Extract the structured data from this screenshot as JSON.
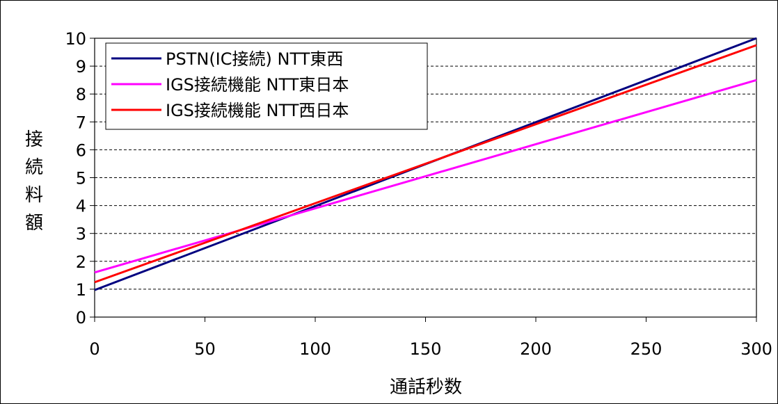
{
  "chart_data": {
    "type": "line",
    "xlabel": "通話秒数",
    "ylabel": "接続料額",
    "xlim": [
      0,
      300
    ],
    "ylim": [
      0,
      10
    ],
    "xticks": [
      0,
      50,
      100,
      150,
      200,
      250,
      300
    ],
    "yticks": [
      0,
      1,
      2,
      3,
      4,
      5,
      6,
      7,
      8,
      9,
      10
    ],
    "grid": "horizontal dashed",
    "legend_position": "top-left",
    "series": [
      {
        "name": "PSTN(IC接続) NTT東西",
        "color": "#000080",
        "x": [
          0,
          300
        ],
        "y": [
          0.97,
          10.0
        ]
      },
      {
        "name": "IGS接続機能 NTT東日本",
        "color": "#ff00ff",
        "x": [
          0,
          300
        ],
        "y": [
          1.6,
          8.5
        ]
      },
      {
        "name": "IGS接続機能 NTT西日本",
        "color": "#ff0000",
        "x": [
          0,
          300
        ],
        "y": [
          1.25,
          9.75
        ]
      }
    ]
  }
}
